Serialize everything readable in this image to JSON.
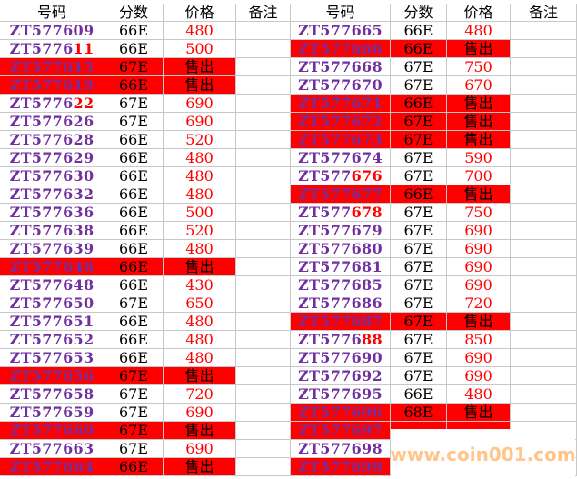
{
  "headers": [
    "号码",
    "分数",
    "价格",
    "备注"
  ],
  "colors": {
    "id": "#7030a0",
    "price": "#ff0000",
    "sold_fill": "#ff0000",
    "watermark": "#ffc58a"
  },
  "left": [
    {
      "id": "ZT577609",
      "score": "66E",
      "price": "480",
      "sold": false
    },
    {
      "id": "ZT5776",
      "id_hl": "11",
      "score": "66E",
      "price": "500",
      "sold": false
    },
    {
      "id": "ZT577615",
      "score": "67E",
      "price": "售出",
      "sold": true
    },
    {
      "id": "ZT577619",
      "score": "66E",
      "price": "售出",
      "sold": true
    },
    {
      "id": "ZT5776",
      "id_hl": "22",
      "score": "67E",
      "price": "690",
      "sold": false
    },
    {
      "id": "ZT577626",
      "score": "67E",
      "price": "690",
      "sold": false
    },
    {
      "id": "ZT577628",
      "score": "66E",
      "price": "520",
      "sold": false
    },
    {
      "id": "ZT577629",
      "score": "66E",
      "price": "480",
      "sold": false
    },
    {
      "id": "ZT577630",
      "score": "66E",
      "price": "480",
      "sold": false
    },
    {
      "id": "ZT577632",
      "score": "66E",
      "price": "480",
      "sold": false
    },
    {
      "id": "ZT577636",
      "score": "66E",
      "price": "500",
      "sold": false
    },
    {
      "id": "ZT577638",
      "score": "66E",
      "price": "520",
      "sold": false
    },
    {
      "id": "ZT577639",
      "score": "66E",
      "price": "480",
      "sold": false
    },
    {
      "id": "ZT577646",
      "score": "66E",
      "price": "售出",
      "sold": true
    },
    {
      "id": "ZT577648",
      "score": "66E",
      "price": "430",
      "sold": false
    },
    {
      "id": "ZT577650",
      "score": "67E",
      "price": "650",
      "sold": false
    },
    {
      "id": "ZT577651",
      "score": "66E",
      "price": "480",
      "sold": false
    },
    {
      "id": "ZT577652",
      "score": "66E",
      "price": "480",
      "sold": false
    },
    {
      "id": "ZT577653",
      "score": "66E",
      "price": "480",
      "sold": false
    },
    {
      "id": "ZT577656",
      "score": "67E",
      "price": "售出",
      "sold": true
    },
    {
      "id": "ZT577658",
      "score": "67E",
      "price": "720",
      "sold": false
    },
    {
      "id": "ZT577659",
      "score": "67E",
      "price": "690",
      "sold": false
    },
    {
      "id": "ZT577660",
      "score": "67E",
      "price": "售出",
      "sold": true
    },
    {
      "id": "ZT577663",
      "score": "67E",
      "price": "690",
      "sold": false
    },
    {
      "id": "ZT577664",
      "score": "66E",
      "price": "售出",
      "sold": true
    }
  ],
  "right": [
    {
      "id": "ZT577665",
      "score": "66E",
      "price": "480",
      "sold": false
    },
    {
      "id": "ZT577666",
      "score": "66E",
      "price": "售出",
      "sold": true
    },
    {
      "id": "ZT577668",
      "score": "67E",
      "price": "750",
      "sold": false
    },
    {
      "id": "ZT577670",
      "score": "67E",
      "price": "670",
      "sold": false
    },
    {
      "id": "ZT577671",
      "score": "66E",
      "price": "售出",
      "sold": true
    },
    {
      "id": "ZT577672",
      "score": "67E",
      "price": "售出",
      "sold": true
    },
    {
      "id": "ZT577673",
      "score": "67E",
      "price": "售出",
      "sold": true
    },
    {
      "id": "ZT577674",
      "score": "67E",
      "price": "590",
      "sold": false
    },
    {
      "id": "ZT577",
      "id_hl": "676",
      "score": "67E",
      "price": "700",
      "sold": false
    },
    {
      "id": "ZT577677",
      "score": "66E",
      "price": "售出",
      "sold": true
    },
    {
      "id": "ZT577",
      "id_hl": "678",
      "score": "67E",
      "price": "750",
      "sold": false
    },
    {
      "id": "ZT577679",
      "score": "67E",
      "price": "690",
      "sold": false
    },
    {
      "id": "ZT577680",
      "score": "67E",
      "price": "690",
      "sold": false
    },
    {
      "id": "ZT577681",
      "score": "67E",
      "price": "690",
      "sold": false
    },
    {
      "id": "ZT577685",
      "score": "67E",
      "price": "690",
      "sold": false
    },
    {
      "id": "ZT577686",
      "score": "67E",
      "price": "720",
      "sold": false
    },
    {
      "id": "ZT577687",
      "score": "67E",
      "price": "售出",
      "sold": true
    },
    {
      "id": "ZT5776",
      "id_hl": "88",
      "score": "67E",
      "price": "850",
      "sold": false
    },
    {
      "id": "ZT577690",
      "score": "67E",
      "price": "690",
      "sold": false
    },
    {
      "id": "ZT577692",
      "score": "67E",
      "price": "690",
      "sold": false
    },
    {
      "id": "ZT577695",
      "score": "66E",
      "price": "480",
      "sold": false
    },
    {
      "id": "ZT577696",
      "score": "68E",
      "price": "售出",
      "sold": true
    },
    {
      "id": "ZT577697",
      "score": "",
      "price": "",
      "sold": true
    },
    {
      "id": "ZT577698",
      "score": "",
      "price": "",
      "sold": false
    },
    {
      "id": "ZT577699",
      "score": "",
      "price": "",
      "sold": true
    }
  ],
  "watermark": "www.coin001.com"
}
